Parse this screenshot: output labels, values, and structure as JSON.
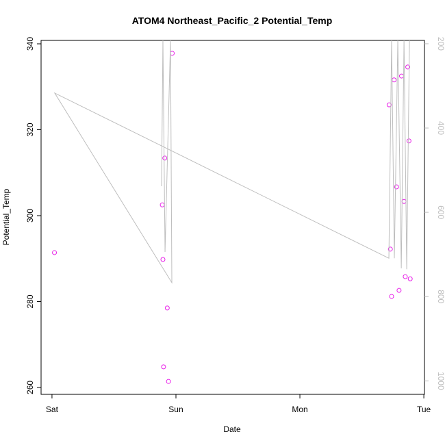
{
  "chart_data": {
    "type": "scatter",
    "title": "ATOM4 Northeast_Pacific_2 Potential_Temp",
    "x_label": "Date",
    "y_label": "Potential_Temp",
    "xlim": [
      -0.088,
      3.005
    ],
    "xticks": [
      {
        "value": 0,
        "label": "Sat"
      },
      {
        "value": 1,
        "label": "Sun"
      },
      {
        "value": 2,
        "label": "Mon"
      },
      {
        "value": 3,
        "label": "Tue"
      }
    ],
    "ylim": [
      258.4,
      340.8
    ],
    "yticks": [
      260,
      280,
      300,
      320,
      340
    ],
    "y2lim": [
      1032,
      192
    ],
    "y2ticks": [
      200,
      400,
      600,
      800,
      1000
    ],
    "series": [
      {
        "type": "scatter",
        "color": "#e81ee8",
        "x": [
          0.02,
          0.89,
          0.895,
          0.9,
          0.91,
          0.93,
          0.94,
          0.97,
          2.72,
          2.73,
          2.74,
          2.76,
          2.78,
          2.8,
          2.82,
          2.84,
          2.85,
          2.87,
          2.88,
          2.89
        ],
        "values": [
          291.4,
          302.5,
          289.8,
          264.8,
          313.4,
          278.5,
          261.4,
          337.8,
          325.8,
          292.2,
          281.2,
          331.6,
          306.7,
          282.6,
          332.5,
          303.3,
          285.8,
          334.6,
          317.4,
          285.3
        ]
      },
      {
        "type": "line",
        "axis": "y2",
        "color": "#bebebe",
        "x": [
          0.884,
          0.895,
          0.912,
          0.956,
          0.967,
          0.022,
          2.718,
          2.74,
          2.762,
          2.79,
          2.818,
          2.84,
          2.862,
          2.884
        ],
        "values": [
          538,
          192,
          694,
          192,
          767,
          317,
          709,
          192,
          709,
          192,
          733,
          192,
          735,
          192
        ]
      }
    ]
  }
}
